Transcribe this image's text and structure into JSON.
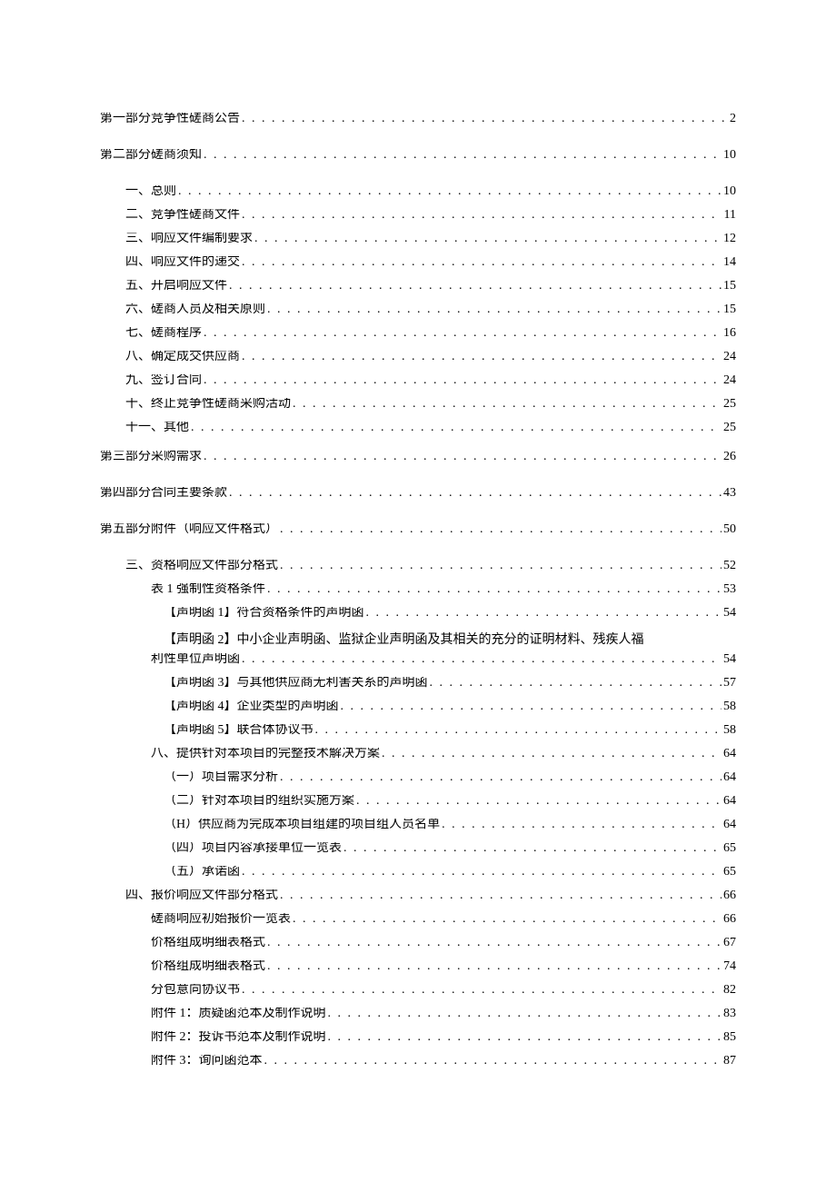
{
  "typography": {
    "font_family": "SimSun",
    "font_size_pt": 10.5,
    "text_color": "#000000",
    "background_color": "#ffffff",
    "leader_char": "."
  },
  "toc": {
    "entries": [
      {
        "id": "p1",
        "level": 1,
        "label": "第一部分竞争性磋商公告",
        "page": "2"
      },
      {
        "id": "p2",
        "level": 1,
        "label": "第二部分磋商须知",
        "page": "10"
      },
      {
        "id": "p2s1",
        "level": 2,
        "label": "一、总则",
        "page": "10"
      },
      {
        "id": "p2s2",
        "level": 2,
        "label": "二、竞争性磋商文件",
        "page": "11"
      },
      {
        "id": "p2s3",
        "level": 2,
        "label": "三、响应文件编制要求",
        "page": "12"
      },
      {
        "id": "p2s4",
        "level": 2,
        "label": "四、响应文件的递交",
        "page": "14"
      },
      {
        "id": "p2s5",
        "level": 2,
        "label": "五、开启响应文件",
        "page": "15"
      },
      {
        "id": "p2s6",
        "level": 2,
        "label": "六、磋商人员及相关原则",
        "page": "15"
      },
      {
        "id": "p2s7",
        "level": 2,
        "label": "七、磋商程序",
        "page": "16"
      },
      {
        "id": "p2s8",
        "level": 2,
        "label": "八、确定成交供应商",
        "page": "24"
      },
      {
        "id": "p2s9",
        "level": 2,
        "label": "九、签订合同",
        "page": "24"
      },
      {
        "id": "p2s10",
        "level": 2,
        "label": "十、终止竞争性磋商采购活动",
        "page": "25"
      },
      {
        "id": "p2s11",
        "level": 2,
        "label": "十一、其他",
        "page": "25"
      },
      {
        "id": "p3",
        "level": 1,
        "label": "第三部分采购需求",
        "page": "26"
      },
      {
        "id": "p4",
        "level": 1,
        "label": "第四部分合同主要条款",
        "page": "43"
      },
      {
        "id": "p5",
        "level": 1,
        "label": "第五部分附件（响应文件格式）",
        "page": "50"
      },
      {
        "id": "p5s3",
        "level": 2,
        "label": "三、资格响应文件部分格式",
        "page": "52"
      },
      {
        "id": "p5s3t1",
        "level": 3,
        "label": "表 1 强制性资格条件",
        "page": "53"
      },
      {
        "id": "p5s3d1",
        "level": 4,
        "label": "【声明函 1】符合资格条件的声明函",
        "page": "54"
      },
      {
        "id": "p5s3d2a",
        "level": 4,
        "label_wrap1": "【声明函 2】中小企业声明函、监狱企业声明函及其相关的充分的证明材料、残疾人福",
        "label_wrap2": "利性单位声明函",
        "page": "54",
        "wrapped": true
      },
      {
        "id": "p5s3d3",
        "level": 4,
        "label": "【声明函 3】与其他供应商无利害关系的声明函",
        "page": "57"
      },
      {
        "id": "p5s3d4",
        "level": 4,
        "label": "【声明函 4】企业类型的声明函",
        "page": "58"
      },
      {
        "id": "p5s3d5",
        "level": 4,
        "label": "【声明函 5】联合体协议书",
        "page": "58"
      },
      {
        "id": "p5s3e8",
        "level": 3,
        "label": "八、提供针对本项目的完整技术解决方案",
        "page": "64"
      },
      {
        "id": "p5s3e8a",
        "level": 4,
        "label": "（一）项目需求分析",
        "page": "64"
      },
      {
        "id": "p5s3e8b",
        "level": 4,
        "label": "（二）针对本项目的组织实施方案",
        "page": "64"
      },
      {
        "id": "p5s3e8c",
        "level": 4,
        "label": "（H）供应商为完成本项目组建的项目组人员名单",
        "page": "64"
      },
      {
        "id": "p5s3e8d",
        "level": 4,
        "label": "（四）项目内容承接单位一览表",
        "page": "65"
      },
      {
        "id": "p5s3e8e",
        "level": 4,
        "label": "（五）承诺函",
        "page": "65"
      },
      {
        "id": "p5s4",
        "level": 2,
        "label": "四、报价响应文件部分格式",
        "page": "66"
      },
      {
        "id": "p5s4a",
        "level": 3,
        "label": "磋商响应初始报价一览表",
        "page": "66"
      },
      {
        "id": "p5s4b",
        "level": 3,
        "label": "价格组成明细表格式",
        "page": "67"
      },
      {
        "id": "p5s4c",
        "level": 3,
        "label": "价格组成明细表格式",
        "page": "74"
      },
      {
        "id": "p5s4d",
        "level": 3,
        "label": "分包意向协议书",
        "page": "82"
      },
      {
        "id": "p5s4e",
        "level": 3,
        "label": "附件 1：质疑函范本及制作说明",
        "page": "83"
      },
      {
        "id": "p5s4f",
        "level": 3,
        "label": "附件 2：投诉书范本及制作说明",
        "page": "85"
      },
      {
        "id": "p5s4g",
        "level": 3,
        "label": "附件 3：询问函范本",
        "page": "87"
      }
    ]
  }
}
